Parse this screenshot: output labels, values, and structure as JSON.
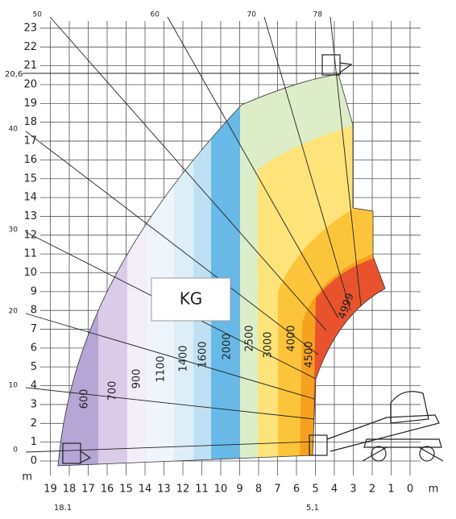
{
  "x_axis": {
    "ticks": [
      19,
      18,
      17,
      16,
      15,
      14,
      13,
      12,
      11,
      10,
      9,
      8,
      7,
      6,
      5,
      4,
      3,
      2,
      1,
      0
    ],
    "unit": "m"
  },
  "y_axis": {
    "ticks": [
      0,
      1,
      2,
      3,
      4,
      5,
      6,
      7,
      8,
      9,
      10,
      11,
      12,
      13,
      14,
      15,
      16,
      17,
      18,
      19,
      20,
      21,
      22,
      23
    ],
    "unit": "m"
  },
  "markers": {
    "max_height": "20,6",
    "max_reach": "18.1",
    "min_reach": "5,1"
  },
  "angles": [
    "0",
    "10",
    "20",
    "30",
    "40",
    "50",
    "60",
    "70",
    "78"
  ],
  "zones": [
    "600",
    "700",
    "900",
    "1100",
    "1400",
    "1600",
    "2000",
    "2500",
    "3000",
    "4000",
    "4500",
    "4999"
  ],
  "label": "KG"
}
